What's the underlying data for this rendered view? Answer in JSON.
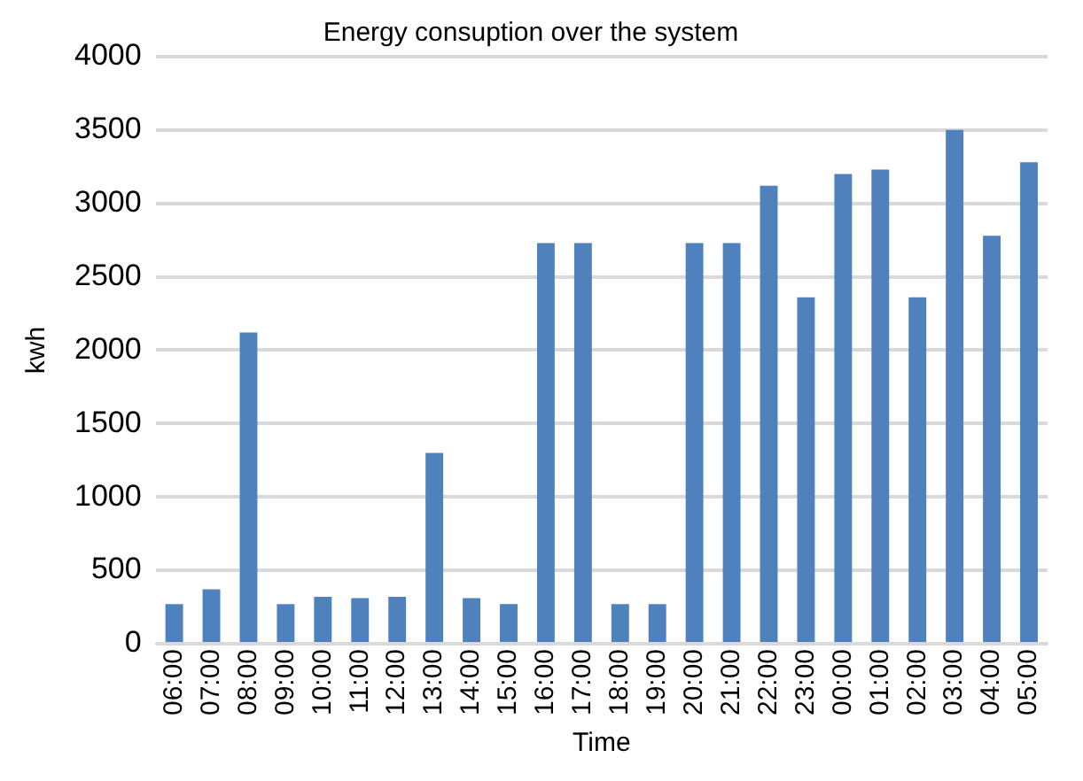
{
  "chart_data": {
    "type": "bar",
    "title": "Energy consuption over the system",
    "xlabel": "Time",
    "ylabel": "kwh",
    "categories": [
      "06:00",
      "07:00",
      "08:00",
      "09:00",
      "10:00",
      "11:00",
      "12:00",
      "13:00",
      "14:00",
      "15:00",
      "16:00",
      "17:00",
      "18:00",
      "19:00",
      "20:00",
      "21:00",
      "22:00",
      "23:00",
      "00:00",
      "01:00",
      "02:00",
      "03:00",
      "04:00",
      "05:00"
    ],
    "values": [
      270,
      370,
      2120,
      270,
      320,
      310,
      320,
      1300,
      310,
      270,
      2730,
      2730,
      270,
      270,
      2730,
      2730,
      3120,
      2360,
      3200,
      3230,
      2360,
      3500,
      2780,
      3280
    ],
    "color": "#4f81bd",
    "ylim": [
      0,
      4000
    ],
    "yticks": [
      0,
      500,
      1000,
      1500,
      2000,
      2500,
      3000,
      3500,
      4000
    ],
    "grid": "y",
    "legend": false
  }
}
